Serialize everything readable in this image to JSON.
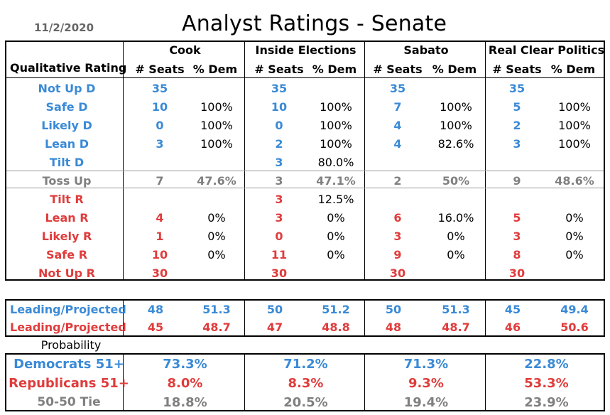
{
  "header": {
    "date": "11/2/2020",
    "title": "Analyst Ratings - Senate"
  },
  "colors": {
    "dem": "#3a8ad6",
    "rep": "#e03c3c",
    "tossup": "#808080"
  },
  "table": {
    "row_header": "Qualitative Rating",
    "sources": [
      "Cook",
      "Inside Elections",
      "Sabato",
      "Real Clear Politics"
    ],
    "seats_label": "# Seats",
    "dem_label": "% Dem",
    "rows": [
      {
        "label": "Not Up D",
        "party": "dem",
        "cells": [
          [
            "35",
            ""
          ],
          [
            "35",
            ""
          ],
          [
            "35",
            ""
          ],
          [
            "35",
            ""
          ]
        ]
      },
      {
        "label": "Safe D",
        "party": "dem",
        "cells": [
          [
            "10",
            "100%"
          ],
          [
            "10",
            "100%"
          ],
          [
            "7",
            "100%"
          ],
          [
            "5",
            "100%"
          ]
        ]
      },
      {
        "label": "Likely D",
        "party": "dem",
        "cells": [
          [
            "0",
            "100%"
          ],
          [
            "0",
            "100%"
          ],
          [
            "4",
            "100%"
          ],
          [
            "2",
            "100%"
          ]
        ]
      },
      {
        "label": "Lean D",
        "party": "dem",
        "cells": [
          [
            "3",
            "100%"
          ],
          [
            "2",
            "100%"
          ],
          [
            "4",
            "82.6%"
          ],
          [
            "3",
            "100%"
          ]
        ]
      },
      {
        "label": "Tilt D",
        "party": "dem",
        "cells": [
          [
            "",
            ""
          ],
          [
            "3",
            "80.0%"
          ],
          [
            "",
            ""
          ],
          [
            "",
            ""
          ]
        ]
      },
      {
        "label": "Toss Up",
        "party": "tossup",
        "cells": [
          [
            "7",
            "47.6%"
          ],
          [
            "3",
            "47.1%"
          ],
          [
            "2",
            "50%"
          ],
          [
            "9",
            "48.6%"
          ]
        ]
      },
      {
        "label": "Tilt R",
        "party": "rep",
        "cells": [
          [
            "",
            ""
          ],
          [
            "3",
            "12.5%"
          ],
          [
            "",
            ""
          ],
          [
            "",
            ""
          ]
        ]
      },
      {
        "label": "Lean R",
        "party": "rep",
        "cells": [
          [
            "4",
            "0%"
          ],
          [
            "3",
            "0%"
          ],
          [
            "6",
            "16.0%"
          ],
          [
            "5",
            "0%"
          ]
        ]
      },
      {
        "label": "Likely R",
        "party": "rep",
        "cells": [
          [
            "1",
            "0%"
          ],
          [
            "0",
            "0%"
          ],
          [
            "3",
            "0%"
          ],
          [
            "3",
            "0%"
          ]
        ]
      },
      {
        "label": "Safe R",
        "party": "rep",
        "cells": [
          [
            "10",
            "0%"
          ],
          [
            "11",
            "0%"
          ],
          [
            "9",
            "0%"
          ],
          [
            "8",
            "0%"
          ]
        ]
      },
      {
        "label": "Not Up R",
        "party": "rep",
        "cells": [
          [
            "30",
            ""
          ],
          [
            "30",
            ""
          ],
          [
            "30",
            ""
          ],
          [
            "30",
            ""
          ]
        ]
      }
    ]
  },
  "projected": [
    {
      "label": "Leading/Projected",
      "party": "dem",
      "cells": [
        [
          "48",
          "51.3"
        ],
        [
          "50",
          "51.2"
        ],
        [
          "50",
          "51.3"
        ],
        [
          "45",
          "49.4"
        ]
      ]
    },
    {
      "label": "Leading/Projected",
      "party": "rep",
      "cells": [
        [
          "45",
          "48.7"
        ],
        [
          "47",
          "48.8"
        ],
        [
          "48",
          "48.7"
        ],
        [
          "46",
          "50.6"
        ]
      ]
    }
  ],
  "probability": {
    "label": "Probability",
    "rows": [
      {
        "label": "Democrats 51+",
        "party": "dem",
        "values": [
          "73.3%",
          "71.2%",
          "71.3%",
          "22.8%"
        ]
      },
      {
        "label": "Republicans 51+",
        "party": "rep",
        "values": [
          "8.0%",
          "8.3%",
          "9.3%",
          "53.3%"
        ]
      },
      {
        "label": "50-50 Tie",
        "party": "tossup",
        "values": [
          "18.8%",
          "20.5%",
          "19.4%",
          "23.9%"
        ]
      }
    ]
  }
}
